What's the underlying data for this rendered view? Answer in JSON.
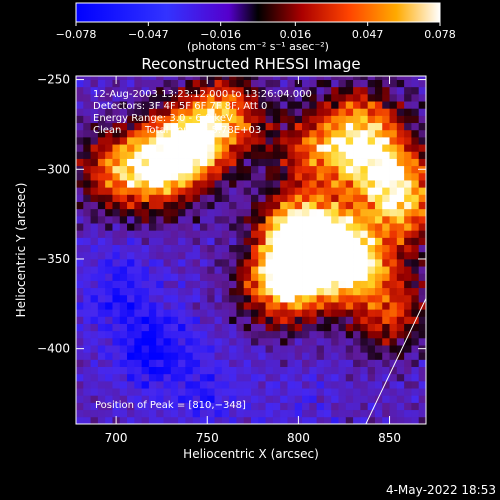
{
  "chart_data": {
    "type": "heatmap",
    "title": "Reconstructed RHESSI Image",
    "xlabel": "Heliocentric X (arcsec)",
    "ylabel": "Heliocentric Y (arcsec)",
    "xlim": [
      678,
      870
    ],
    "ylim": [
      -442,
      -248
    ],
    "xticks": [
      700,
      750,
      800,
      850
    ],
    "yticks": [
      -250,
      -300,
      -350,
      -400
    ],
    "xtick_labels": [
      "700",
      "750",
      "800",
      "850"
    ],
    "ytick_labels": [
      "−250",
      "−300",
      "−350",
      "−400"
    ],
    "colorbar": {
      "ticks": [
        -0.078,
        -0.047,
        -0.016,
        0.016,
        0.047,
        0.078
      ],
      "tick_labels": [
        "−0.078",
        "−0.047",
        "−0.016",
        "0.016",
        "0.047",
        "0.078"
      ],
      "label": "(photons cm⁻² s⁻¹ asec⁻²)"
    },
    "annotations": [
      "12‑Aug‑2003 13:23:12.000 to 13:26:04.000",
      "Detectors: 3F 4F 5F 6F 7F 8F, Att 0",
      "Energy Range: 3.0 ‑ 6.0 keV",
      "Clean",
      "Total counts: 5.78E+03"
    ],
    "peak_label": "Position of Peak = [810,−348]",
    "peak": [
      810,
      -348
    ],
    "hot_regions": [
      {
        "x": 810,
        "y": -348,
        "value": 0.078
      },
      {
        "x": 800,
        "y": -335,
        "value": 0.07
      },
      {
        "x": 790,
        "y": -365,
        "value": 0.065
      },
      {
        "x": 832,
        "y": -350,
        "value": 0.055
      },
      {
        "x": 740,
        "y": -285,
        "value": 0.06
      },
      {
        "x": 725,
        "y": -300,
        "value": 0.055
      },
      {
        "x": 760,
        "y": -270,
        "value": 0.05
      },
      {
        "x": 845,
        "y": -300,
        "value": 0.055
      },
      {
        "x": 835,
        "y": -275,
        "value": 0.045
      },
      {
        "x": 860,
        "y": -320,
        "value": 0.05
      },
      {
        "x": 810,
        "y": -290,
        "value": 0.04
      },
      {
        "x": 850,
        "y": -380,
        "value": 0.035
      },
      {
        "x": 700,
        "y": -300,
        "value": 0.04
      }
    ],
    "cold_regions": [
      {
        "x": 720,
        "y": -400,
        "value": -0.078
      },
      {
        "x": 700,
        "y": -365,
        "value": -0.06
      },
      {
        "x": 750,
        "y": -425,
        "value": -0.055
      },
      {
        "x": 800,
        "y": -430,
        "value": -0.04
      }
    ],
    "limb_line": [
      [
        837,
        -442
      ],
      [
        870,
        -372
      ]
    ],
    "timestamp": "4‑May‑2022 18:53"
  }
}
